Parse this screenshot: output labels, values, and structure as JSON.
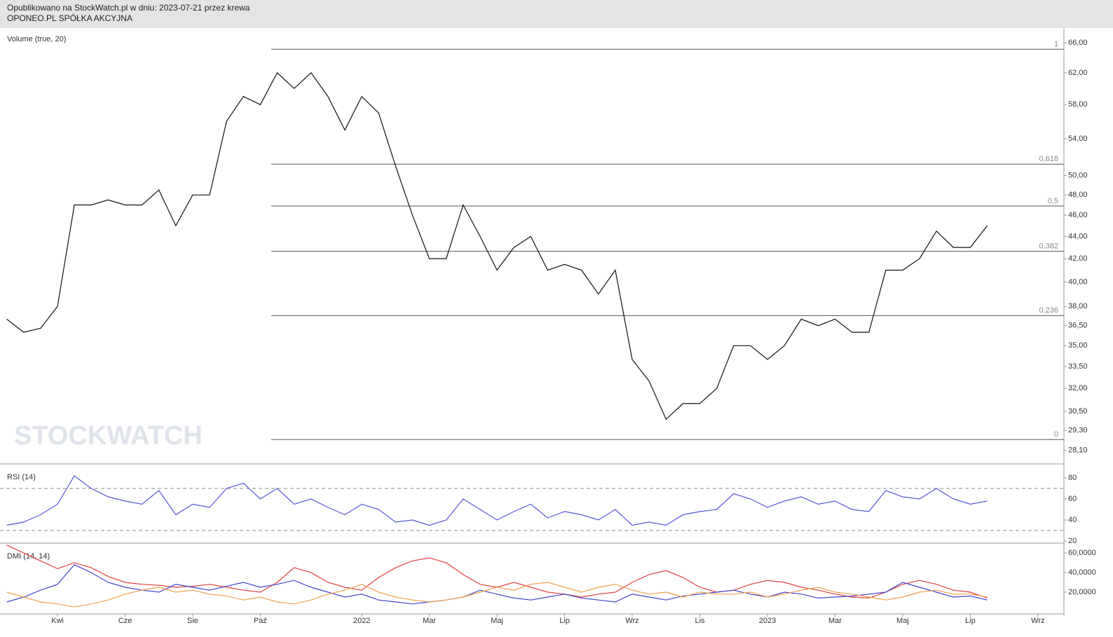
{
  "header": {
    "line1": "Opublikowano na StockWatch.pl w dniu: 2023-07-21 przez krewa",
    "line2": "OPONEO.PL SPÓŁKA AKCYJNA"
  },
  "chart_data": [
    {
      "type": "line",
      "title": "Volume (true, 20)",
      "watermark": "STOCKWATCH",
      "log_scale": true,
      "color": "#111111",
      "x": [
        1.5,
        2,
        2.5,
        3,
        3.5,
        4,
        4.5,
        5,
        5.5,
        6,
        6.5,
        7,
        7.5,
        8,
        8.5,
        9,
        9.5,
        10,
        10.5,
        11,
        11.5,
        12,
        12.5,
        13,
        13.5,
        14,
        14.5,
        15,
        15.5,
        16,
        16.5,
        17,
        17.5,
        18,
        18.5,
        19,
        19.5,
        20,
        20.5,
        21,
        21.5,
        22,
        22.5,
        23,
        23.5,
        24,
        24.5,
        25,
        25.5,
        26,
        26.5,
        27,
        27.5,
        28,
        28.5,
        29,
        29.5,
        30,
        30.5
      ],
      "values": [
        37,
        36,
        36.3,
        38,
        47,
        47,
        47.5,
        47,
        47,
        48.5,
        45,
        48,
        48,
        56,
        59,
        58,
        62,
        60,
        62,
        59,
        55,
        59,
        57,
        51,
        46,
        42,
        42,
        47,
        44,
        41,
        43,
        44,
        41,
        41.5,
        41,
        39,
        41,
        34,
        32.5,
        30,
        31,
        31,
        32,
        35,
        35,
        34,
        35,
        37,
        36.5,
        37,
        36,
        36,
        41,
        41,
        42,
        44.5,
        43,
        43,
        45
      ],
      "xlim": [
        1.3,
        32.77
      ],
      "xticks": [
        {
          "value": 3,
          "label": "Kwi"
        },
        {
          "value": 5,
          "label": "Cze"
        },
        {
          "value": 7,
          "label": "Sie"
        },
        {
          "value": 9,
          "label": "Paź"
        },
        {
          "value": 12,
          "label": "2022"
        },
        {
          "value": 14,
          "label": "Mar"
        },
        {
          "value": 16,
          "label": "Maj"
        },
        {
          "value": 18,
          "label": "Lip"
        },
        {
          "value": 20,
          "label": "Wrz"
        },
        {
          "value": 22,
          "label": "Lis"
        },
        {
          "value": 24,
          "label": "2023"
        },
        {
          "value": 26,
          "label": "Mar"
        },
        {
          "value": 28,
          "label": "Maj"
        },
        {
          "value": 30,
          "label": "Lip"
        },
        {
          "value": 32,
          "label": "Wrz"
        }
      ],
      "ylim": [
        27.4,
        68.1
      ],
      "yticks": [
        {
          "value": 66,
          "label": "66,00"
        },
        {
          "value": 62,
          "label": "62,00"
        },
        {
          "value": 58,
          "label": "58,00"
        },
        {
          "value": 54,
          "label": "54,00"
        },
        {
          "value": 50,
          "label": "50,00"
        },
        {
          "value": 48,
          "label": "48,00"
        },
        {
          "value": 46,
          "label": "46,00"
        },
        {
          "value": 44,
          "label": "44,00"
        },
        {
          "value": 42,
          "label": "42,00"
        },
        {
          "value": 40,
          "label": "40,00"
        },
        {
          "value": 38,
          "label": "38,00"
        },
        {
          "value": 36.5,
          "label": "36,50"
        },
        {
          "value": 35,
          "label": "35,00"
        },
        {
          "value": 33.5,
          "label": "33,50"
        },
        {
          "value": 32,
          "label": "32,00"
        },
        {
          "value": 30.5,
          "label": "30,50"
        },
        {
          "value": 29.3,
          "label": "29,30"
        },
        {
          "value": 28.1,
          "label": "28,10"
        }
      ],
      "levels": [
        {
          "value": 65.14,
          "label": "1"
        },
        {
          "value": 51.2,
          "label": "0,618"
        },
        {
          "value": 46.9,
          "label": "0,5"
        },
        {
          "value": 42.65,
          "label": "0,382"
        },
        {
          "value": 37.28,
          "label": "0,236"
        },
        {
          "value": 28.75,
          "label": "0"
        }
      ]
    },
    {
      "type": "line",
      "title": "RSI (14)",
      "color": "#5555dd",
      "values": [
        35,
        38,
        45,
        55,
        82,
        70,
        62,
        58,
        55,
        68,
        45,
        55,
        52,
        70,
        75,
        60,
        70,
        55,
        60,
        52,
        45,
        55,
        50,
        38,
        40,
        35,
        40,
        60,
        50,
        40,
        48,
        55,
        42,
        48,
        45,
        40,
        50,
        35,
        38,
        35,
        45,
        48,
        50,
        65,
        60,
        52,
        58,
        62,
        55,
        58,
        50,
        48,
        68,
        62,
        60,
        70,
        60,
        55,
        58
      ],
      "ylim": [
        19.3,
        91.3
      ],
      "yticks": [
        80,
        60,
        40,
        20
      ],
      "reference_lines": [
        70,
        30
      ]
    },
    {
      "type": "line",
      "title": "DMI (14, 14)",
      "series": [
        {
          "color": "#e04040",
          "values": [
            68,
            60,
            52,
            44,
            50,
            45,
            36,
            30,
            28,
            27,
            25,
            26,
            28,
            25,
            22,
            20,
            30,
            45,
            40,
            30,
            25,
            22,
            35,
            45,
            52,
            55,
            50,
            38,
            28,
            25,
            30,
            25,
            20,
            18,
            15,
            18,
            20,
            30,
            38,
            42,
            35,
            25,
            20,
            22,
            28,
            32,
            30,
            25,
            22,
            18,
            15,
            14,
            20,
            28,
            32,
            28,
            22,
            20,
            14
          ]
        },
        {
          "color": "#4444cc",
          "values": [
            10,
            15,
            22,
            28,
            48,
            40,
            30,
            25,
            22,
            20,
            28,
            25,
            22,
            26,
            30,
            25,
            28,
            32,
            25,
            20,
            15,
            18,
            12,
            10,
            8,
            10,
            12,
            15,
            22,
            18,
            14,
            12,
            15,
            18,
            14,
            12,
            10,
            18,
            15,
            12,
            16,
            18,
            20,
            22,
            18,
            15,
            20,
            18,
            14,
            15,
            16,
            18,
            20,
            30,
            25,
            20,
            15,
            16,
            12
          ]
        },
        {
          "color": "#f0a050",
          "values": [
            20,
            15,
            10,
            8,
            5,
            8,
            12,
            18,
            22,
            25,
            20,
            22,
            18,
            16,
            12,
            15,
            10,
            8,
            12,
            18,
            22,
            28,
            20,
            15,
            12,
            10,
            12,
            15,
            20,
            25,
            22,
            28,
            30,
            25,
            20,
            25,
            28,
            22,
            18,
            20,
            15,
            20,
            18,
            18,
            20,
            15,
            18,
            22,
            25,
            20,
            18,
            15,
            12,
            15,
            20,
            22,
            18,
            18,
            15
          ]
        }
      ],
      "ylim": [
        -1.4,
        67.9
      ],
      "yticks": [
        {
          "value": 60,
          "label": "60,0000"
        },
        {
          "value": 40,
          "label": "40,0000"
        },
        {
          "value": 20,
          "label": "20,0000"
        }
      ]
    }
  ]
}
